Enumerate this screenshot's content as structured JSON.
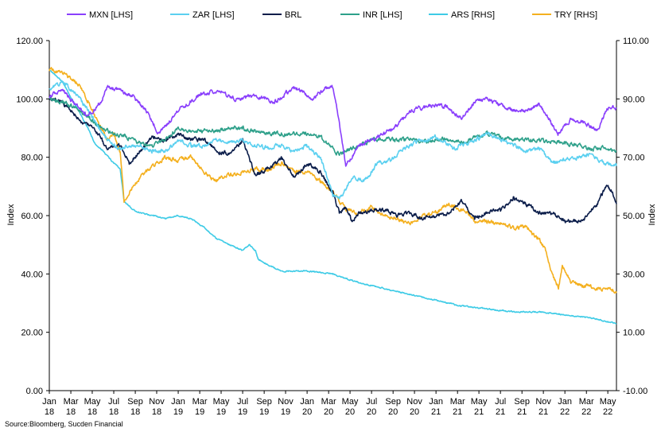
{
  "chart_data": {
    "type": "line",
    "y_left": {
      "label": "Index",
      "ticks": [
        "0.00",
        "20.00",
        "40.00",
        "60.00",
        "80.00",
        "100.00",
        "120.00"
      ],
      "range": [
        0,
        120
      ]
    },
    "y_right": {
      "label": "Index",
      "ticks": [
        "-10.00",
        "10.00",
        "30.00",
        "50.00",
        "70.00",
        "90.00",
        "110.00"
      ],
      "range": [
        -10,
        110
      ]
    },
    "x_ticks": [
      {
        "m": "Jan",
        "y": "18",
        "t": 2018.0
      },
      {
        "m": "Mar",
        "y": "18",
        "t": 2018.167
      },
      {
        "m": "May",
        "y": "18",
        "t": 2018.333
      },
      {
        "m": "Jul",
        "y": "18",
        "t": 2018.5
      },
      {
        "m": "Sep",
        "y": "18",
        "t": 2018.667
      },
      {
        "m": "Nov",
        "y": "18",
        "t": 2018.833
      },
      {
        "m": "Jan",
        "y": "19",
        "t": 2019.0
      },
      {
        "m": "Mar",
        "y": "19",
        "t": 2019.167
      },
      {
        "m": "May",
        "y": "19",
        "t": 2019.333
      },
      {
        "m": "Jul",
        "y": "19",
        "t": 2019.5
      },
      {
        "m": "Sep",
        "y": "19",
        "t": 2019.667
      },
      {
        "m": "Nov",
        "y": "19",
        "t": 2019.833
      },
      {
        "m": "Jan",
        "y": "20",
        "t": 2020.0
      },
      {
        "m": "Mar",
        "y": "20",
        "t": 2020.167
      },
      {
        "m": "May",
        "y": "20",
        "t": 2020.333
      },
      {
        "m": "Jul",
        "y": "20",
        "t": 2020.5
      },
      {
        "m": "Sep",
        "y": "20",
        "t": 2020.667
      },
      {
        "m": "Nov",
        "y": "20",
        "t": 2020.833
      },
      {
        "m": "Jan",
        "y": "21",
        "t": 2021.0
      },
      {
        "m": "Mar",
        "y": "21",
        "t": 2021.167
      },
      {
        "m": "May",
        "y": "21",
        "t": 2021.333
      },
      {
        "m": "Jul",
        "y": "21",
        "t": 2021.5
      },
      {
        "m": "Sep",
        "y": "21",
        "t": 2021.667
      },
      {
        "m": "Nov",
        "y": "21",
        "t": 2021.833
      },
      {
        "m": "Jan",
        "y": "22",
        "t": 2022.0
      },
      {
        "m": "Mar",
        "y": "22",
        "t": 2022.167
      },
      {
        "m": "May",
        "y": "22",
        "t": 2022.333
      }
    ],
    "x_range": [
      2018.0,
      2022.4
    ],
    "legend_position": "top",
    "grid": false,
    "series": [
      {
        "name": "MXN [LHS]",
        "axis": "left",
        "color": "#8a3ffc",
        "x": [
          2018.0,
          2018.1,
          2018.2,
          2018.3,
          2018.4,
          2018.45,
          2018.55,
          2018.65,
          2018.75,
          2018.85,
          2019.0,
          2019.15,
          2019.3,
          2019.45,
          2019.6,
          2019.75,
          2019.9,
          2020.05,
          2020.15,
          2020.2,
          2020.25,
          2020.3,
          2020.4,
          2020.5,
          2020.6,
          2020.7,
          2020.8,
          2020.9,
          2021.0,
          2021.1,
          2021.2,
          2021.3,
          2021.4,
          2021.5,
          2021.6,
          2021.7,
          2021.8,
          2021.85,
          2021.95,
          2022.05,
          2022.15,
          2022.25,
          2022.33,
          2022.4
        ],
        "y": [
          101,
          103,
          98,
          94,
          99,
          104,
          103,
          101,
          96,
          88,
          96,
          101,
          103,
          100,
          101,
          99,
          104,
          100,
          104,
          104,
          92,
          77,
          84,
          86,
          88,
          91,
          96,
          97,
          98,
          97,
          93,
          99,
          100,
          98,
          96,
          96,
          98,
          95,
          88,
          93,
          92,
          89,
          97,
          97
        ]
      },
      {
        "name": "ZAR [LHS]",
        "axis": "left",
        "color": "#5bd0f0",
        "x": [
          2018.0,
          2018.1,
          2018.2,
          2018.3,
          2018.4,
          2018.5,
          2018.55,
          2018.6,
          2018.7,
          2018.8,
          2018.9,
          2019.0,
          2019.1,
          2019.2,
          2019.3,
          2019.4,
          2019.5,
          2019.6,
          2019.7,
          2019.8,
          2019.9,
          2020.0,
          2020.1,
          2020.15,
          2020.2,
          2020.25,
          2020.3,
          2020.35,
          2020.45,
          2020.55,
          2020.65,
          2020.75,
          2020.85,
          2021.0,
          2021.15,
          2021.3,
          2021.4,
          2021.5,
          2021.6,
          2021.7,
          2021.8,
          2021.9,
          2022.0,
          2022.1,
          2022.2,
          2022.3,
          2022.4
        ],
        "y": [
          103,
          106,
          102,
          96,
          89,
          84,
          83,
          84,
          84,
          82,
          82,
          86,
          84,
          84,
          86,
          85,
          86,
          84,
          83,
          84,
          82,
          84,
          80,
          74,
          67,
          66,
          69,
          73,
          72,
          78,
          79,
          83,
          85,
          87,
          83,
          86,
          88,
          86,
          84,
          82,
          83,
          78,
          79,
          80,
          81,
          78,
          77
        ]
      },
      {
        "name": "BRL",
        "axis": "left",
        "color": "#0b1d4a",
        "x": [
          2018.0,
          2018.05,
          2018.15,
          2018.25,
          2018.35,
          2018.45,
          2018.5,
          2018.55,
          2018.62,
          2018.7,
          2018.8,
          2018.9,
          2019.0,
          2019.1,
          2019.2,
          2019.3,
          2019.4,
          2019.5,
          2019.6,
          2019.7,
          2019.8,
          2019.9,
          2020.0,
          2020.1,
          2020.2,
          2020.25,
          2020.3,
          2020.35,
          2020.4,
          2020.5,
          2020.6,
          2020.7,
          2020.8,
          2020.9,
          2021.0,
          2021.1,
          2021.2,
          2021.3,
          2021.4,
          2021.5,
          2021.6,
          2021.7,
          2021.8,
          2021.9,
          2022.0,
          2022.1,
          2022.15,
          2022.25,
          2022.32,
          2022.37,
          2022.4
        ],
        "y": [
          100,
          100,
          97,
          92,
          90,
          83,
          84,
          84,
          78,
          82,
          87,
          86,
          88,
          86,
          86,
          82,
          81,
          86,
          74,
          76,
          80,
          73,
          78,
          75,
          68,
          61,
          63,
          58,
          61,
          62,
          62,
          60,
          61,
          59,
          60,
          61,
          65,
          59,
          61,
          62,
          66,
          64,
          61,
          61,
          58,
          58,
          59,
          64,
          70,
          68,
          64
        ]
      },
      {
        "name": "INR [LHS]",
        "axis": "left",
        "color": "#2ea08a",
        "x": [
          2018.0,
          2018.1,
          2018.2,
          2018.3,
          2018.4,
          2018.5,
          2018.6,
          2018.7,
          2018.8,
          2018.9,
          2019.0,
          2019.1,
          2019.2,
          2019.3,
          2019.4,
          2019.5,
          2019.6,
          2019.7,
          2019.8,
          2019.9,
          2020.0,
          2020.1,
          2020.2,
          2020.25,
          2020.3,
          2020.4,
          2020.5,
          2020.6,
          2020.7,
          2020.8,
          2020.9,
          2021.0,
          2021.1,
          2021.2,
          2021.3,
          2021.4,
          2021.5,
          2021.6,
          2021.7,
          2021.8,
          2021.9,
          2022.0,
          2022.1,
          2022.2,
          2022.3,
          2022.4
        ],
        "y": [
          100,
          99,
          97,
          94,
          90,
          88,
          87,
          85,
          84,
          86,
          90,
          89,
          89,
          89,
          90,
          90,
          89,
          88,
          88,
          88,
          88,
          87,
          83,
          81,
          82,
          84,
          86,
          86,
          86,
          86,
          85,
          86,
          86,
          85,
          87,
          88,
          87,
          86,
          86,
          86,
          85,
          85,
          84,
          83,
          83,
          82
        ]
      },
      {
        "name": "ARS [RHS]",
        "axis": "right",
        "color": "#3ecbe6",
        "x": [
          2018.0,
          2018.1,
          2018.2,
          2018.3,
          2018.35,
          2018.42,
          2018.5,
          2018.55,
          2018.58,
          2018.65,
          2018.7,
          2018.8,
          2018.9,
          2019.0,
          2019.1,
          2019.2,
          2019.3,
          2019.4,
          2019.5,
          2019.55,
          2019.6,
          2019.62,
          2019.7,
          2019.8,
          2019.9,
          2020.0,
          2020.2,
          2020.4,
          2020.6,
          2020.8,
          2021.0,
          2021.2,
          2021.4,
          2021.6,
          2021.8,
          2022.0,
          2022.2,
          2022.4
        ],
        "y": [
          100,
          96,
          88,
          80,
          75,
          72,
          68,
          66,
          55,
          52,
          51,
          50,
          49,
          50,
          49,
          46,
          42,
          40,
          38,
          40,
          38,
          35,
          33,
          31,
          31,
          31,
          30,
          27,
          25,
          23,
          21,
          19,
          18,
          17,
          17,
          16,
          15,
          13
        ]
      },
      {
        "name": "TRY [RHS]",
        "axis": "right",
        "color": "#f4b01f",
        "x": [
          2018.0,
          2018.1,
          2018.2,
          2018.25,
          2018.3,
          2018.4,
          2018.45,
          2018.5,
          2018.55,
          2018.58,
          2018.65,
          2018.7,
          2018.8,
          2018.9,
          2019.0,
          2019.1,
          2019.2,
          2019.3,
          2019.4,
          2019.5,
          2019.6,
          2019.7,
          2019.8,
          2019.9,
          2020.0,
          2020.1,
          2020.2,
          2020.3,
          2020.4,
          2020.5,
          2020.6,
          2020.7,
          2020.8,
          2020.9,
          2021.0,
          2021.1,
          2021.2,
          2021.25,
          2021.3,
          2021.4,
          2021.5,
          2021.6,
          2021.7,
          2021.8,
          2021.85,
          2021.9,
          2021.95,
          2021.98,
          2022.05,
          2022.15,
          2022.25,
          2022.35,
          2022.4
        ],
        "y": [
          100,
          99,
          96,
          94,
          89,
          80,
          76,
          78,
          72,
          55,
          60,
          63,
          67,
          70,
          69,
          70,
          65,
          62,
          64,
          65,
          66,
          66,
          68,
          65,
          65,
          62,
          58,
          52,
          51,
          53,
          50,
          49,
          47,
          50,
          51,
          54,
          52,
          51,
          48,
          48,
          47,
          46,
          46,
          42,
          38,
          30,
          25,
          33,
          27,
          26,
          25,
          25,
          24
        ]
      }
    ]
  },
  "source_text": "Source:Bloomberg, Sucden Financial"
}
